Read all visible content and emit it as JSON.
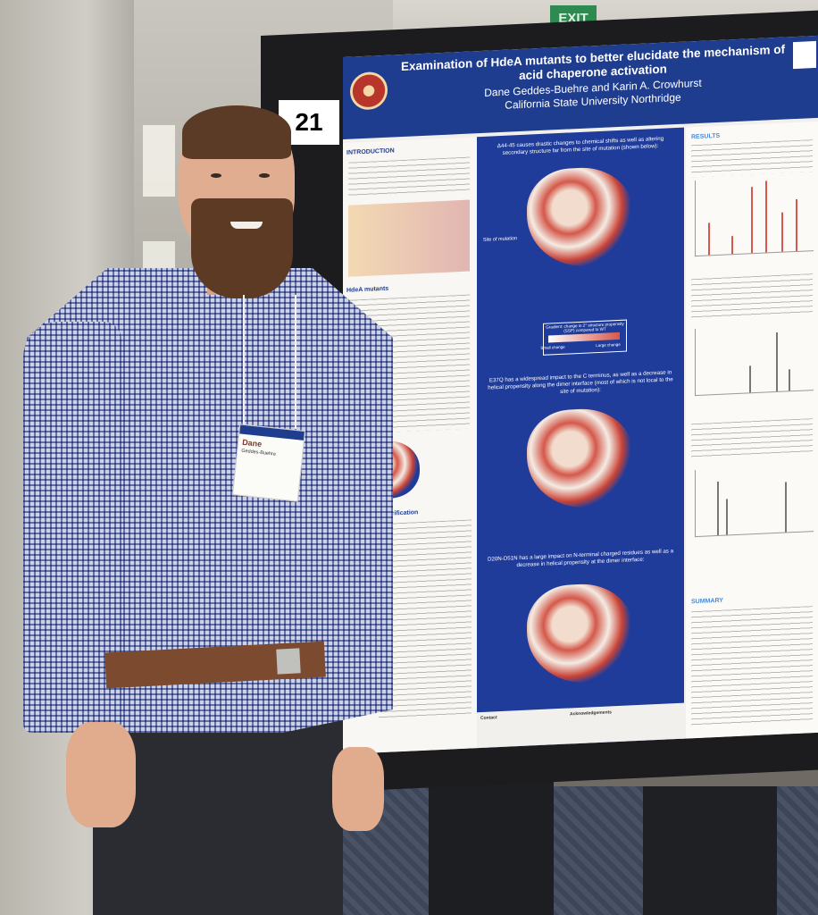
{
  "exit_sign": "EXIT",
  "poster_number": "21",
  "poster": {
    "title": "Examination of HdeA mutants to better elucidate the mechanism of acid chaperone activation",
    "authors": "Dane Geddes-Buehre and Karin A. Crowhurst",
    "affiliation": "California State University Northridge",
    "left": {
      "intro_heading": "INTRODUCTION",
      "mutants_heading": "HdeA mutants",
      "purification_heading": "d purification"
    },
    "middle": {
      "caption1": "Δ44-45 causes drastic changes to chemical shifts as well as altering secondary structure far from the site of mutation (shown below):",
      "site_label": "Site of mutation",
      "legend_title": "Gradient: change in 2° structure propensity (SSP) compared to WT",
      "legend_small": "Small change",
      "legend_large": "Large change",
      "caption2": "E37Q has a widespread impact to the C terminus, as well as a decrease in helical propensity along the dimer interface (most of which is not local to the site of mutation):",
      "caption3": "D20N-D51N has a large impact on N-terminal charged residues as well as a decrease in helical propensity at the dimer interface:",
      "contact": "Contact",
      "acknowledgements": "Acknowledgements"
    },
    "right": {
      "results_heading": "RESULTS",
      "summary_heading": "SUMMARY"
    }
  },
  "badge": {
    "name": "Dane",
    "subtitle": "Geddes-Buehre"
  }
}
